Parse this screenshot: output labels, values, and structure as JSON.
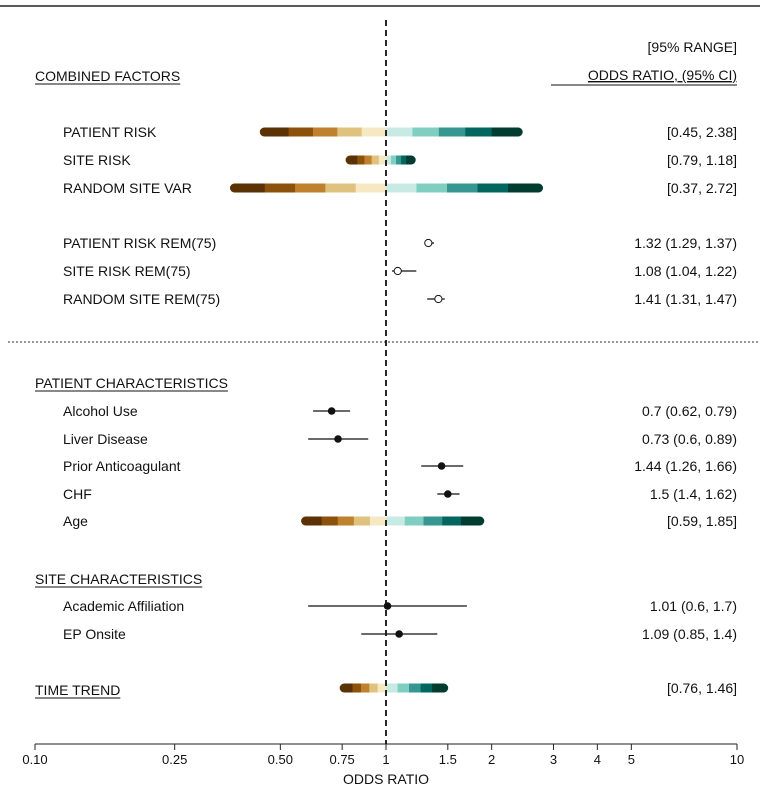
{
  "chart_data": {
    "type": "forest",
    "xlabel": "ODDS RATIO",
    "x_scale": "log",
    "xlim": [
      0.1,
      10
    ],
    "ticks": [
      0.1,
      0.25,
      0.5,
      0.75,
      1,
      1.5,
      2,
      3,
      4,
      5,
      10
    ],
    "tick_labels": [
      "0.10",
      "0.25",
      "0.50",
      "0.75",
      "1",
      "1.5",
      "2",
      "3",
      "4",
      "5",
      "10"
    ],
    "reference_line": 1,
    "right_header": [
      "[95% RANGE]",
      "ODDS RATIO, (95% CI)"
    ],
    "gradient_colors": [
      "#5a3206",
      "#8c510a",
      "#bf812d",
      "#dfc27d",
      "#f6e8c3",
      "#c7eae5",
      "#80cdc1",
      "#35978f",
      "#01665e",
      "#003c30"
    ],
    "sections": [
      {
        "title": "COMBINED FACTORS",
        "rows": [
          {
            "label": "PATIENT RISK",
            "type": "range",
            "low": 0.45,
            "high": 2.38,
            "text": "[0.45, 2.38]"
          },
          {
            "label": "SITE RISK",
            "type": "range",
            "low": 0.79,
            "high": 1.18,
            "text": "[0.79, 1.18]"
          },
          {
            "label": "RANDOM SITE VAR",
            "type": "range",
            "low": 0.37,
            "high": 2.72,
            "text": "[0.37, 2.72]"
          },
          {
            "label": "PATIENT RISK REM(75)",
            "type": "open",
            "est": 1.32,
            "low": 1.29,
            "high": 1.37,
            "text": "1.32 (1.29, 1.37)"
          },
          {
            "label": "SITE RISK REM(75)",
            "type": "open",
            "est": 1.08,
            "low": 1.04,
            "high": 1.22,
            "text": "1.08 (1.04, 1.22)"
          },
          {
            "label": "RANDOM SITE REM(75)",
            "type": "open",
            "est": 1.41,
            "low": 1.31,
            "high": 1.47,
            "text": "1.41 (1.31, 1.47)"
          }
        ]
      },
      {
        "title": "PATIENT CHARACTERISTICS",
        "rows": [
          {
            "label": "Alcohol Use",
            "type": "point",
            "est": 0.7,
            "low": 0.62,
            "high": 0.79,
            "text": "0.7 (0.62, 0.79)"
          },
          {
            "label": "Liver Disease",
            "type": "point",
            "est": 0.73,
            "low": 0.6,
            "high": 0.89,
            "text": "0.73 (0.6, 0.89)"
          },
          {
            "label": "Prior Anticoagulant",
            "type": "point",
            "est": 1.44,
            "low": 1.26,
            "high": 1.66,
            "text": "1.44 (1.26, 1.66)"
          },
          {
            "label": "CHF",
            "type": "point",
            "est": 1.5,
            "low": 1.4,
            "high": 1.62,
            "text": "1.5 (1.4, 1.62)"
          },
          {
            "label": "Age",
            "type": "range",
            "low": 0.59,
            "high": 1.85,
            "text": "[0.59, 1.85]"
          }
        ]
      },
      {
        "title": "SITE CHARACTERISTICS",
        "rows": [
          {
            "label": "Academic Affiliation",
            "type": "point",
            "est": 1.01,
            "low": 0.6,
            "high": 1.7,
            "text": "1.01 (0.6, 1.7)"
          },
          {
            "label": "EP Onsite",
            "type": "point",
            "est": 1.09,
            "low": 0.85,
            "high": 1.4,
            "text": "1.09 (0.85, 1.4)"
          }
        ]
      },
      {
        "title": "TIME TREND",
        "rows": [
          {
            "label": "",
            "type": "range",
            "low": 0.76,
            "high": 1.46,
            "text": "[0.76, 1.46]"
          }
        ]
      }
    ]
  }
}
